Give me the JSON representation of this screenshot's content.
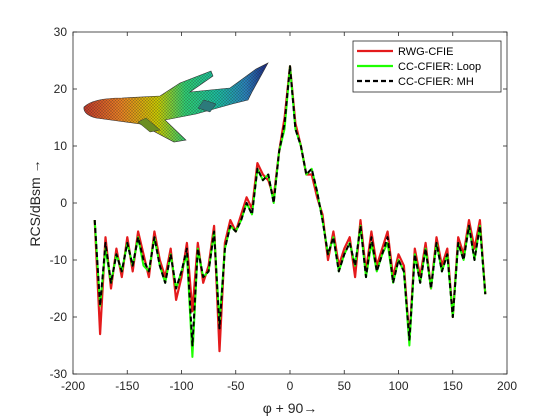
{
  "chart_data": {
    "type": "line",
    "title": "",
    "xlabel": "φ + 90→",
    "ylabel": "RCS/dBsm →",
    "xlim": [
      -200,
      200
    ],
    "ylim": [
      -30,
      30
    ],
    "xticks": [
      -200,
      -150,
      -100,
      -50,
      0,
      50,
      100,
      150,
      200
    ],
    "yticks": [
      -30,
      -20,
      -10,
      0,
      10,
      20,
      30
    ],
    "xtick_labels": [
      "-200",
      "-150",
      "-100",
      "-50",
      "0",
      "50",
      "100",
      "150",
      "200"
    ],
    "ytick_labels": [
      "-30",
      "-20",
      "-10",
      "0",
      "10",
      "20",
      "30"
    ],
    "grid": false,
    "legend_position": "top-right",
    "inset_image": "aircraft-mesh",
    "x": [
      -180,
      -175,
      -170,
      -165,
      -160,
      -155,
      -150,
      -145,
      -140,
      -135,
      -130,
      -125,
      -120,
      -115,
      -110,
      -105,
      -100,
      -95,
      -90,
      -85,
      -80,
      -75,
      -70,
      -65,
      -60,
      -55,
      -50,
      -45,
      -40,
      -35,
      -30,
      -25,
      -20,
      -15,
      -10,
      -5,
      0,
      5,
      10,
      15,
      20,
      25,
      30,
      35,
      40,
      45,
      50,
      55,
      60,
      65,
      70,
      75,
      80,
      85,
      90,
      95,
      100,
      105,
      110,
      115,
      120,
      125,
      130,
      135,
      140,
      145,
      150,
      155,
      160,
      165,
      170,
      175,
      180
    ],
    "series": [
      {
        "name": "RWG-CFIE",
        "color": "#e41a1c",
        "dash": "solid",
        "values": [
          -3,
          -23,
          -6,
          -15,
          -8,
          -13,
          -6,
          -12,
          -5,
          -9,
          -13,
          -5,
          -10,
          -13,
          -8,
          -17,
          -13,
          -7,
          -19,
          -7,
          -14,
          -11,
          -4,
          -26,
          -7,
          -3,
          -5,
          -2,
          1,
          -1,
          7,
          5,
          4,
          1,
          9,
          15,
          24,
          14,
          10,
          5,
          5,
          1,
          -2,
          -10,
          -5,
          -11,
          -8,
          -6,
          -13,
          -3,
          -12,
          -5,
          -11,
          -8,
          -5,
          -13,
          -9,
          -11,
          -24,
          -8,
          -13,
          -7,
          -15,
          -6,
          -11,
          -8,
          -20,
          -6,
          -9,
          -3,
          -8,
          -3,
          -16
        ]
      },
      {
        "name": "CC-CFIER: Loop",
        "color": "#1eff00",
        "dash": "solid",
        "values": [
          -3,
          -18,
          -8,
          -14,
          -9,
          -12,
          -7,
          -11,
          -6,
          -11,
          -12,
          -6,
          -11,
          -14,
          -9,
          -15,
          -12,
          -9,
          -27,
          -8,
          -13,
          -12,
          -5,
          -21,
          -8,
          -4,
          -5,
          -3,
          0,
          -2,
          6,
          4,
          5,
          0,
          9,
          13,
          24,
          13,
          10,
          5,
          6,
          2,
          -3,
          -9,
          -6,
          -12,
          -9,
          -7,
          -11,
          -4,
          -13,
          -7,
          -12,
          -9,
          -7,
          -14,
          -10,
          -12,
          -25,
          -9,
          -14,
          -8,
          -15,
          -7,
          -12,
          -9,
          -20,
          -7,
          -10,
          -4,
          -10,
          -4,
          -16
        ]
      },
      {
        "name": "CC-CFIER: MH",
        "color": "#000000",
        "dash": "dashed",
        "values": [
          -3,
          -18,
          -7,
          -14,
          -9,
          -12,
          -7,
          -11,
          -6,
          -10,
          -12,
          -6,
          -11,
          -14,
          -9,
          -15,
          -12,
          -8,
          -25,
          -8,
          -13,
          -12,
          -5,
          -22,
          -8,
          -4,
          -5,
          -3,
          0,
          -2,
          6,
          4,
          5,
          0,
          9,
          14,
          24,
          13,
          10,
          5,
          6,
          2,
          -3,
          -9,
          -6,
          -12,
          -9,
          -7,
          -11,
          -4,
          -13,
          -6,
          -12,
          -9,
          -6,
          -14,
          -10,
          -12,
          -24,
          -9,
          -14,
          -8,
          -15,
          -7,
          -12,
          -9,
          -20,
          -7,
          -10,
          -4,
          -10,
          -4,
          -16
        ]
      }
    ]
  }
}
